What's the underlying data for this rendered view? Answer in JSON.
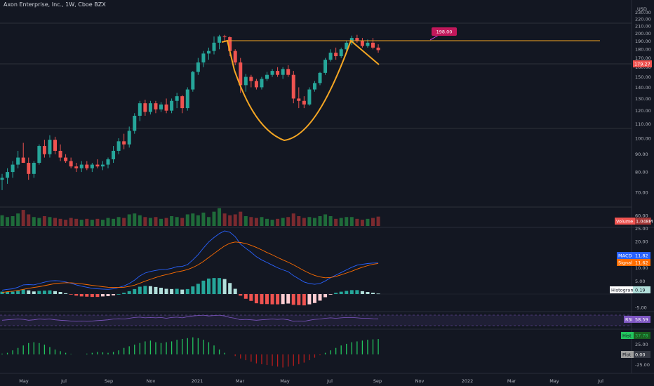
{
  "title": "Axon Enterprise, Inc., 1W, Cboe BZX",
  "colors": {
    "background": "#131722",
    "up": "#26a69a",
    "down": "#ef5350",
    "pattern": "#f5a623",
    "macd": "#2962ff",
    "signal": "#ff6d00",
    "rsi": "#7e57c2"
  },
  "price_axis": {
    "currency": "USD",
    "ticks": [
      "230.00",
      "220.00",
      "210.00",
      "200.00",
      "190.00",
      "180.00",
      "170.00",
      "160.00",
      "150.00",
      "140.00",
      "130.00",
      "120.00",
      "110.00",
      "100.00",
      "90.00",
      "80.00",
      "70.00",
      "60.00"
    ],
    "current_price": "179.27",
    "target_label": "198.00"
  },
  "x_axis": {
    "labels": [
      "May",
      "Jul",
      "Sep",
      "Nov",
      "2021",
      "Mar",
      "May",
      "Jul",
      "Sep",
      "Nov",
      "2022",
      "Mar",
      "May",
      "Jul"
    ]
  },
  "volume_tag": {
    "name": "Volume",
    "value": "1.048M"
  },
  "macd_panel": {
    "ticks": [
      "25.00",
      "20.00",
      "15.00",
      "10.00",
      "5.00",
      "-5.00"
    ],
    "macd_tag": {
      "name": "MACD",
      "value": "11.82"
    },
    "signal_tag": {
      "name": "Signal",
      "value": "11.62"
    },
    "histogram_tag": {
      "name": "Histogram",
      "value": "0.19"
    }
  },
  "rsi_panel": {
    "rsi_tag": {
      "name": "RSI",
      "value": "58.59"
    }
  },
  "osc_panel": {
    "ticks": [
      "50.00",
      "25.00",
      "-25.00"
    ],
    "hist_tag": {
      "name": "Hist",
      "value": "37.78"
    },
    "plot_tag": {
      "name": "Plot",
      "value": "0.00"
    }
  },
  "chart_data": {
    "type": "candlestick",
    "timeframe": "1W",
    "series": [
      {
        "name": "price",
        "candles": [
          [
            76,
            79,
            71,
            77
          ],
          [
            77,
            82,
            74,
            80
          ],
          [
            80,
            86,
            77,
            84
          ],
          [
            84,
            92,
            82,
            88
          ],
          [
            88,
            97,
            85,
            85
          ],
          [
            85,
            88,
            76,
            79
          ],
          [
            79,
            86,
            77,
            85
          ],
          [
            85,
            96,
            84,
            95
          ],
          [
            95,
            99,
            88,
            90
          ],
          [
            90,
            102,
            88,
            99
          ],
          [
            99,
            101,
            90,
            92
          ],
          [
            92,
            96,
            86,
            88
          ],
          [
            88,
            90,
            85,
            86
          ],
          [
            86,
            88,
            82,
            83
          ],
          [
            83,
            85,
            80,
            82
          ],
          [
            82,
            86,
            80,
            84
          ],
          [
            84,
            86,
            81,
            82
          ],
          [
            82,
            85,
            80,
            84
          ],
          [
            84,
            87,
            82,
            83
          ],
          [
            83,
            86,
            81,
            84
          ],
          [
            84,
            88,
            82,
            87
          ],
          [
            87,
            95,
            85,
            92
          ],
          [
            92,
            100,
            90,
            98
          ],
          [
            98,
            103,
            93,
            96
          ],
          [
            96,
            108,
            94,
            105
          ],
          [
            105,
            118,
            103,
            116
          ],
          [
            116,
            128,
            112,
            126
          ],
          [
            126,
            129,
            116,
            119
          ],
          [
            119,
            128,
            117,
            126
          ],
          [
            126,
            128,
            118,
            121
          ],
          [
            121,
            127,
            119,
            125
          ],
          [
            125,
            130,
            118,
            120
          ],
          [
            120,
            130,
            118,
            128
          ],
          [
            128,
            135,
            122,
            132
          ],
          [
            132,
            133,
            118,
            122
          ],
          [
            122,
            140,
            120,
            138
          ],
          [
            138,
            156,
            136,
            155
          ],
          [
            155,
            170,
            152,
            165
          ],
          [
            165,
            178,
            160,
            175
          ],
          [
            175,
            182,
            168,
            178
          ],
          [
            178,
            196,
            174,
            188
          ],
          [
            188,
            198,
            180,
            196
          ],
          [
            196,
            198,
            190,
            195
          ],
          [
            195,
            196,
            172,
            178
          ],
          [
            178,
            180,
            162,
            165
          ],
          [
            165,
            170,
            135,
            142
          ],
          [
            142,
            153,
            136,
            150
          ],
          [
            150,
            152,
            140,
            146
          ],
          [
            146,
            148,
            138,
            140
          ],
          [
            140,
            150,
            138,
            148
          ],
          [
            148,
            155,
            146,
            152
          ],
          [
            152,
            158,
            150,
            156
          ],
          [
            156,
            160,
            150,
            152
          ],
          [
            152,
            160,
            148,
            158
          ],
          [
            158,
            162,
            150,
            152
          ],
          [
            152,
            156,
            126,
            130
          ],
          [
            130,
            140,
            122,
            128
          ],
          [
            128,
            132,
            122,
            125
          ],
          [
            125,
            140,
            124,
            138
          ],
          [
            138,
            146,
            136,
            144
          ],
          [
            144,
            155,
            142,
            154
          ],
          [
            154,
            170,
            152,
            168
          ],
          [
            168,
            180,
            166,
            176
          ],
          [
            176,
            182,
            168,
            172
          ],
          [
            172,
            182,
            170,
            180
          ],
          [
            180,
            190,
            178,
            188
          ],
          [
            188,
            197,
            185,
            194
          ],
          [
            194,
            198,
            188,
            190
          ],
          [
            190,
            194,
            182,
            184
          ],
          [
            184,
            192,
            182,
            188
          ],
          [
            188,
            194,
            180,
            182
          ],
          [
            182,
            186,
            176,
            179
          ]
        ]
      },
      {
        "name": "Volume",
        "values": [
          1.2,
          1.0,
          1.1,
          1.4,
          1.8,
          1.3,
          1.0,
          0.9,
          1.1,
          1.0,
          0.9,
          0.8,
          0.7,
          0.9,
          0.8,
          0.7,
          0.8,
          0.7,
          0.8,
          0.7,
          0.9,
          0.8,
          1.0,
          0.9,
          1.3,
          1.4,
          1.2,
          1.0,
          0.9,
          1.0,
          0.8,
          0.9,
          1.1,
          1.0,
          0.9,
          1.3,
          1.4,
          1.2,
          1.5,
          1.0,
          1.6,
          2.0,
          1.4,
          1.2,
          1.3,
          1.6,
          1.1,
          1.0,
          0.9,
          1.0,
          0.8,
          0.7,
          0.8,
          0.9,
          1.0,
          1.4,
          1.1,
          0.9,
          1.0,
          0.9,
          1.1,
          1.3,
          1.1,
          0.8,
          0.9,
          1.0,
          1.0,
          0.8,
          0.7,
          0.8,
          0.9,
          1.05
        ]
      },
      {
        "name": "MACD",
        "values": [
          1.5,
          1.8,
          2.0,
          2.6,
          3.5,
          3.6,
          3.5,
          4.0,
          4.5,
          5.0,
          5.1,
          5.0,
          4.6,
          4.1,
          3.5,
          3.0,
          2.6,
          2.2,
          2.0,
          1.9,
          1.8,
          2.0,
          2.5,
          3.1,
          4.0,
          5.3,
          6.9,
          8.0,
          8.6,
          9.0,
          9.3,
          9.4,
          9.8,
          10.4,
          10.5,
          11.2,
          13.0,
          15.0,
          17.5,
          19.8,
          21.5,
          23.0,
          24.0,
          23.5,
          21.8,
          19.0,
          17.4,
          15.9,
          14.2,
          13.0,
          12.0,
          11.0,
          10.0,
          9.2,
          8.5,
          7.0,
          5.8,
          4.6,
          4.0,
          3.7,
          4.0,
          5.0,
          6.2,
          7.2,
          8.2,
          9.2,
          10.2,
          11.0,
          11.3,
          11.6,
          11.8,
          11.82
        ]
      },
      {
        "name": "Signal",
        "values": [
          0.6,
          0.9,
          1.1,
          1.4,
          1.8,
          2.2,
          2.5,
          2.8,
          3.2,
          3.6,
          4.0,
          4.2,
          4.3,
          4.3,
          4.1,
          3.9,
          3.6,
          3.3,
          3.1,
          2.8,
          2.6,
          2.5,
          2.5,
          2.6,
          2.9,
          3.4,
          4.1,
          4.9,
          5.6,
          6.3,
          6.9,
          7.4,
          7.9,
          8.4,
          8.8,
          9.3,
          10.1,
          11.1,
          12.4,
          13.9,
          15.4,
          16.9,
          18.3,
          19.3,
          19.8,
          19.6,
          19.2,
          18.5,
          17.7,
          16.8,
          15.8,
          14.9,
          13.9,
          13.0,
          12.1,
          11.1,
          10.0,
          8.9,
          7.9,
          7.1,
          6.5,
          6.2,
          6.3,
          6.7,
          7.3,
          8.0,
          8.7,
          9.5,
          10.2,
          10.8,
          11.3,
          11.62
        ]
      },
      {
        "name": "Histogram",
        "values": [
          0.9,
          0.9,
          0.9,
          1.2,
          1.7,
          1.4,
          1.0,
          1.2,
          1.3,
          1.4,
          1.1,
          0.8,
          0.3,
          -0.2,
          -0.6,
          -0.9,
          -1.0,
          -1.1,
          -1.1,
          -0.9,
          -0.8,
          -0.5,
          0.0,
          0.5,
          1.1,
          1.9,
          2.8,
          3.1,
          3.0,
          2.7,
          2.4,
          2.0,
          1.9,
          2.0,
          1.7,
          1.9,
          2.9,
          3.9,
          5.1,
          5.9,
          6.1,
          6.1,
          5.7,
          4.2,
          2.0,
          -0.6,
          -1.8,
          -2.6,
          -3.5,
          -3.8,
          -3.8,
          -3.9,
          -3.9,
          -3.8,
          -3.6,
          -4.1,
          -4.2,
          -4.3,
          -3.9,
          -3.4,
          -2.5,
          -1.2,
          -0.1,
          0.5,
          0.9,
          1.2,
          1.5,
          1.5,
          1.1,
          0.8,
          0.5,
          0.19
        ]
      },
      {
        "name": "RSI",
        "values": [
          55,
          56,
          57,
          58,
          57,
          55,
          56,
          58,
          57,
          58,
          56,
          55,
          54,
          53,
          52,
          53,
          52,
          53,
          54,
          55,
          56,
          58,
          59,
          58,
          60,
          62,
          63,
          61,
          62,
          61,
          62,
          60,
          62,
          63,
          61,
          64,
          66,
          67,
          68,
          66,
          67,
          68,
          66,
          62,
          60,
          56,
          57,
          56,
          55,
          56,
          57,
          58,
          57,
          58,
          56,
          52,
          53,
          52,
          55,
          57,
          58,
          60,
          61,
          60,
          61,
          62,
          62,
          61,
          60,
          60,
          59,
          58.59
        ]
      },
      {
        "name": "Hist",
        "values": [
          2,
          4,
          10,
          16,
          22,
          28,
          30,
          28,
          24,
          18,
          12,
          8,
          4,
          1,
          0,
          0,
          2,
          4,
          6,
          5,
          4,
          6,
          10,
          16,
          20,
          24,
          28,
          32,
          34,
          30,
          28,
          30,
          32,
          36,
          38,
          40,
          42,
          40,
          36,
          30,
          22,
          12,
          4,
          0,
          -4,
          -10,
          -14,
          -18,
          -22,
          -24,
          -26,
          -28,
          -30,
          -32,
          -30,
          -28,
          -24,
          -20,
          -14,
          -8,
          -2,
          4,
          10,
          16,
          22,
          26,
          30,
          32,
          34,
          36,
          37,
          37.78
        ]
      }
    ],
    "overlays": [
      {
        "type": "horizontal",
        "value": 198.0,
        "label": "198.00"
      },
      {
        "type": "horizontal",
        "value": 179.27
      }
    ],
    "y_range": [
      55,
      235
    ],
    "scale": "log",
    "grid": true
  }
}
